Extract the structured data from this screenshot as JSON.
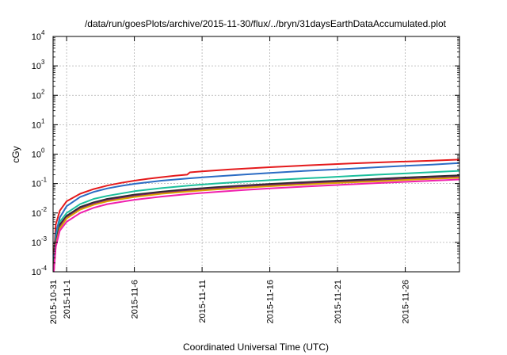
{
  "chart_data": {
    "type": "line",
    "title": "/data/run/goesPlots/archive/2015-11-30/flux/../bryn/31daysEarthDataAccumulated.plot",
    "xlabel": "Coordinated Universal Time (UTC)",
    "ylabel": "cGy",
    "yscale": "log",
    "ylim": [
      0.0001,
      10000
    ],
    "xlim": [
      0,
      30
    ],
    "x_tick_values": [
      0,
      1,
      6,
      11,
      16,
      21,
      26
    ],
    "x_tick_labels": [
      "2015-10-31",
      "2015-11-1",
      "2015-11-6",
      "2015-11-11",
      "2015-11-16",
      "2015-11-21",
      "2015-11-26"
    ],
    "y_tick_base": "10",
    "y_tick_exponents": [
      "-4",
      "-3",
      "-2",
      "-1",
      "0",
      "1",
      "2",
      "3",
      "4"
    ],
    "grid": true,
    "legend": "none",
    "series": [
      {
        "color": "#e41a1c",
        "x": [
          0.05,
          0.2,
          0.5,
          1,
          2,
          3,
          4,
          5,
          6,
          7,
          8,
          9,
          9.9,
          10.1,
          11,
          13,
          16,
          19,
          22,
          25,
          28,
          30
        ],
        "values": [
          0.0003,
          0.004,
          0.012,
          0.025,
          0.045,
          0.065,
          0.085,
          0.105,
          0.125,
          0.145,
          0.165,
          0.185,
          0.2,
          0.24,
          0.26,
          0.3,
          0.36,
          0.42,
          0.48,
          0.54,
          0.6,
          0.65
        ]
      },
      {
        "color": "#2b6cc4",
        "x": [
          0.05,
          0.2,
          0.5,
          1,
          2,
          3,
          4,
          5,
          6,
          8,
          10,
          12,
          14,
          16,
          18,
          20,
          22,
          24,
          26,
          28,
          30
        ],
        "values": [
          0.0002,
          0.002,
          0.007,
          0.017,
          0.035,
          0.052,
          0.068,
          0.083,
          0.098,
          0.125,
          0.15,
          0.175,
          0.2,
          0.23,
          0.26,
          0.29,
          0.32,
          0.36,
          0.4,
          0.44,
          0.5
        ]
      },
      {
        "color": "#1bbf9c",
        "x": [
          0.05,
          0.2,
          0.5,
          1,
          2,
          3,
          4,
          6,
          8,
          10,
          12,
          14,
          16,
          18,
          20,
          22,
          24,
          26,
          28,
          30
        ],
        "values": [
          0.00015,
          0.0012,
          0.005,
          0.01,
          0.02,
          0.03,
          0.038,
          0.055,
          0.07,
          0.085,
          0.1,
          0.115,
          0.13,
          0.145,
          0.16,
          0.18,
          0.2,
          0.22,
          0.245,
          0.27
        ]
      },
      {
        "color": "#2c2c2c",
        "x": [
          0.05,
          0.2,
          0.5,
          1,
          2,
          3,
          4,
          6,
          8,
          10,
          12,
          14,
          16,
          18,
          20,
          22,
          24,
          26,
          28,
          30
        ],
        "values": [
          0.00012,
          0.001,
          0.004,
          0.008,
          0.016,
          0.023,
          0.03,
          0.042,
          0.053,
          0.064,
          0.075,
          0.086,
          0.097,
          0.108,
          0.12,
          0.13,
          0.145,
          0.16,
          0.175,
          0.19
        ]
      },
      {
        "color": "#7a1f6e",
        "x": [
          0.05,
          0.2,
          0.5,
          1,
          2,
          3,
          4,
          6,
          8,
          10,
          12,
          14,
          16,
          18,
          20,
          22,
          24,
          26,
          28,
          30
        ],
        "values": [
          0.0001,
          0.0009,
          0.0035,
          0.007,
          0.014,
          0.021,
          0.027,
          0.038,
          0.048,
          0.058,
          0.068,
          0.078,
          0.088,
          0.098,
          0.108,
          0.118,
          0.13,
          0.143,
          0.156,
          0.17
        ]
      },
      {
        "color": "#d9a300",
        "x": [
          0.05,
          0.2,
          0.5,
          1,
          2,
          3,
          4,
          6,
          8,
          10,
          12,
          14,
          16,
          18,
          20,
          22,
          24,
          26,
          28,
          30
        ],
        "values": [
          0.0001,
          0.0008,
          0.003,
          0.0065,
          0.013,
          0.019,
          0.025,
          0.035,
          0.045,
          0.054,
          0.063,
          0.072,
          0.081,
          0.09,
          0.1,
          0.11,
          0.12,
          0.132,
          0.145,
          0.158
        ]
      },
      {
        "color": "#f01fae",
        "x": [
          0.05,
          0.2,
          0.5,
          1,
          2,
          3,
          4,
          6,
          8,
          10,
          12,
          14,
          16,
          18,
          20,
          22,
          24,
          26,
          28,
          30
        ],
        "values": [
          0.0001,
          0.0007,
          0.0025,
          0.005,
          0.01,
          0.015,
          0.02,
          0.028,
          0.036,
          0.044,
          0.052,
          0.06,
          0.068,
          0.076,
          0.085,
          0.094,
          0.104,
          0.114,
          0.125,
          0.137
        ]
      }
    ]
  }
}
